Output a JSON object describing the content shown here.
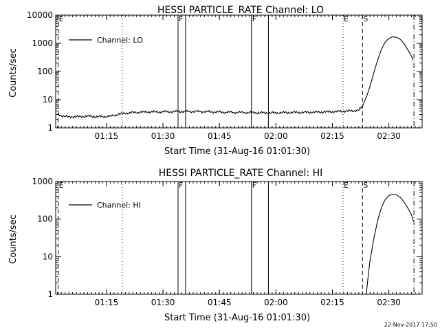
{
  "chart_data": [
    {
      "type": "line",
      "title": "HESSI PARTICLE_RATE Channel: LO",
      "xlabel": "Start Time (31-Aug-16 01:01:30)",
      "ylabel": "Counts/sec",
      "y_scale": "log",
      "ylim": [
        1,
        10000
      ],
      "xlim": [
        "01:01:30",
        "02:38:50"
      ],
      "x_ticks": [
        "01:15",
        "01:30",
        "01:45",
        "02:00",
        "02:15",
        "02:30"
      ],
      "y_ticks": [
        "1",
        "10",
        "100",
        "1000",
        "10000"
      ],
      "legend": {
        "label": "Channel: LO",
        "position": "top-left"
      },
      "series": [
        {
          "name": "Channel: LO",
          "points": [
            [
              "01:02:00",
              3.0
            ],
            [
              "01:03:00",
              2.7
            ],
            [
              "01:04:00",
              2.6
            ],
            [
              "01:05:00",
              2.4
            ],
            [
              "01:06:00",
              2.5
            ],
            [
              "01:08:00",
              2.5
            ],
            [
              "01:10:00",
              2.6
            ],
            [
              "01:12:00",
              2.5
            ],
            [
              "01:14:00",
              2.5
            ],
            [
              "01:16:00",
              2.6
            ],
            [
              "01:17:00",
              2.8
            ],
            [
              "01:18:00",
              3.0
            ],
            [
              "01:19:00",
              3.2
            ],
            [
              "01:20:00",
              3.3
            ],
            [
              "01:22:00",
              3.5
            ],
            [
              "01:24:00",
              3.6
            ],
            [
              "01:26:00",
              3.7
            ],
            [
              "01:30:00",
              3.7
            ],
            [
              "01:34:00",
              3.8
            ],
            [
              "01:40:00",
              3.8
            ],
            [
              "01:46:00",
              3.6
            ],
            [
              "01:52:00",
              3.5
            ],
            [
              "01:58:00",
              3.4
            ],
            [
              "02:04:00",
              3.5
            ],
            [
              "02:10:00",
              3.6
            ],
            [
              "02:16:00",
              3.8
            ],
            [
              "02:20:00",
              4.0
            ],
            [
              "02:22:00",
              4.2
            ],
            [
              "02:23:00",
              6.0
            ],
            [
              "02:24:00",
              12
            ],
            [
              "02:25:00",
              30
            ],
            [
              "02:26:00",
              90
            ],
            [
              "02:27:00",
              250
            ],
            [
              "02:28:00",
              600
            ],
            [
              "02:29:00",
              1100
            ],
            [
              "02:30:00",
              1500
            ],
            [
              "02:31:00",
              1700
            ],
            [
              "02:32:00",
              1650
            ],
            [
              "02:33:00",
              1400
            ],
            [
              "02:34:00",
              1000
            ],
            [
              "02:35:00",
              600
            ],
            [
              "02:36:00",
              350
            ],
            [
              "02:36:30",
              240
            ]
          ]
        }
      ],
      "noise_amplitude_log10": 0.05
    },
    {
      "type": "line",
      "title": "HESSI PARTICLE_RATE Channel: HI",
      "xlabel": "Start Time (31-Aug-16 01:01:30)",
      "ylabel": "Counts/sec",
      "y_scale": "log",
      "ylim": [
        1,
        1000
      ],
      "xlim": [
        "01:01:30",
        "02:38:50"
      ],
      "x_ticks": [
        "01:15",
        "01:30",
        "01:45",
        "02:00",
        "02:15",
        "02:30"
      ],
      "y_ticks": [
        "1",
        "10",
        "100",
        "1000"
      ],
      "legend": {
        "label": "Channel: HI",
        "position": "top-left"
      },
      "series": [
        {
          "name": "Channel: HI",
          "points": [
            [
              "02:24:00",
              1.0
            ],
            [
              "02:24:30",
              3.0
            ],
            [
              "02:25:00",
              8.0
            ],
            [
              "02:26:00",
              30
            ],
            [
              "02:27:00",
              90
            ],
            [
              "02:28:00",
              200
            ],
            [
              "02:29:00",
              330
            ],
            [
              "02:30:00",
              420
            ],
            [
              "02:31:00",
              460
            ],
            [
              "02:32:00",
              440
            ],
            [
              "02:33:00",
              380
            ],
            [
              "02:34:00",
              290
            ],
            [
              "02:35:00",
              200
            ],
            [
              "02:36:00",
              130
            ],
            [
              "02:36:30",
              90
            ]
          ]
        }
      ],
      "noise_amplitude_log10": 0
    }
  ],
  "markers": [
    {
      "label": "E",
      "time": "01:02:10",
      "style": "dashed"
    },
    {
      "label": "",
      "time": "01:19:10",
      "style": "dotted"
    },
    {
      "label": "F",
      "time": "01:34:00",
      "style": "solid"
    },
    {
      "label": "",
      "time": "01:36:00",
      "style": "solid"
    },
    {
      "label": "F",
      "time": "01:53:30",
      "style": "solid"
    },
    {
      "label": "",
      "time": "01:58:00",
      "style": "solid"
    },
    {
      "label": "E",
      "time": "02:17:50",
      "style": "dotted"
    },
    {
      "label": "S",
      "time": "02:23:00",
      "style": "dashed"
    },
    {
      "label": "",
      "time": "02:36:40",
      "style": "dashdot"
    }
  ],
  "timestamp": "22-Nov-2017 17:50"
}
